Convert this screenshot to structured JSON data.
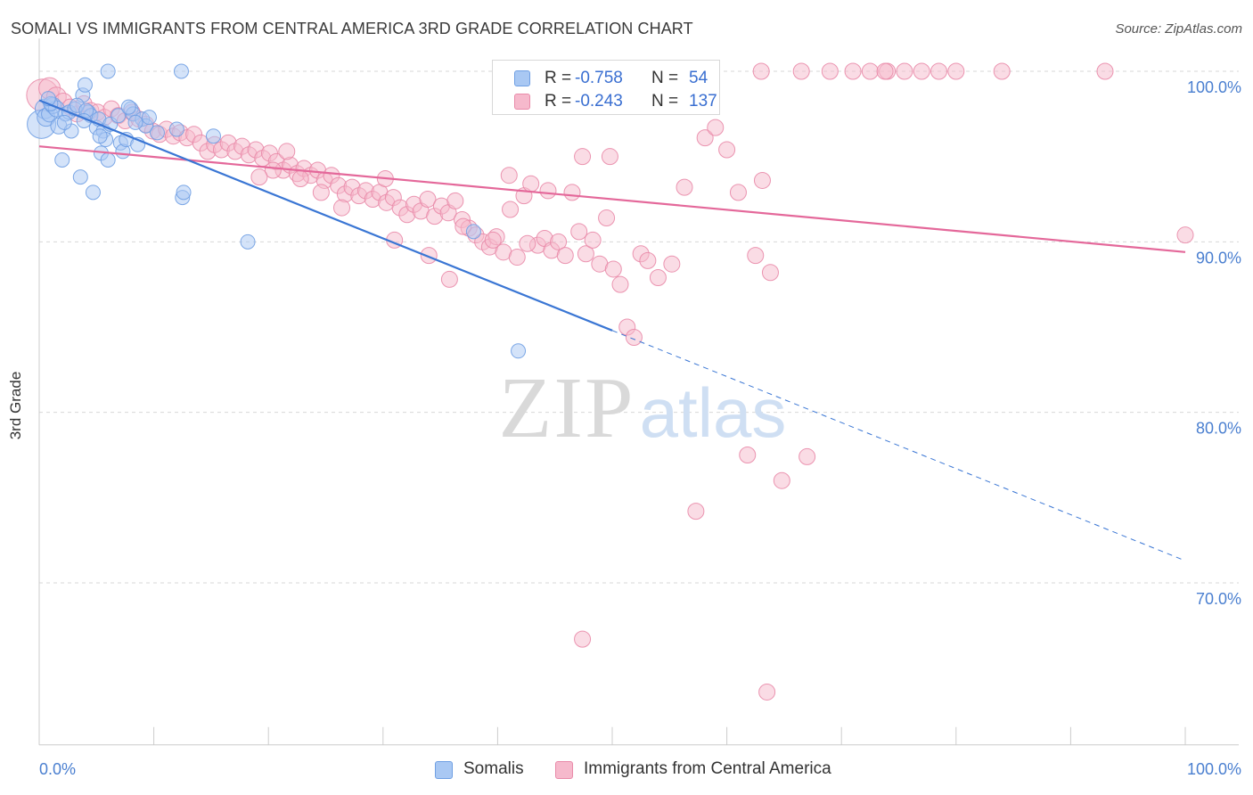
{
  "header": {
    "title": "SOMALI VS IMMIGRANTS FROM CENTRAL AMERICA 3RD GRADE CORRELATION CHART",
    "source": "Source: ZipAtlas.com"
  },
  "watermark": {
    "zip": "ZIP",
    "atlas": "atlas"
  },
  "stats": {
    "somalis": {
      "r_label": "R =",
      "r_value": "-0.758",
      "n_label": "N =",
      "n_value": "54"
    },
    "central_america": {
      "r_label": "R =",
      "r_value": "-0.243",
      "n_label": "N =",
      "n_value": "137"
    }
  },
  "legend": {
    "somalis": "Somalis",
    "central_america": "Immigrants from Central America"
  },
  "colors": {
    "somalis_fill": "#a9c8f3",
    "somalis_stroke": "#6f9fe3",
    "somalis_line": "#3a76d4",
    "central_fill": "#f6b9cc",
    "central_stroke": "#e98aa9",
    "central_line": "#e4689a",
    "grid": "#d7d7d7",
    "axis_label": "#4a7fd0"
  },
  "chart_data": {
    "type": "scatter",
    "title": "SOMALI VS IMMIGRANTS FROM CENTRAL AMERICA 3RD GRADE CORRELATION CHART",
    "xlabel": "",
    "ylabel": "3rd Grade",
    "xlim": [
      0,
      100
    ],
    "ylim": [
      60.5,
      101.5
    ],
    "x_tick_labels": [
      "0.0%",
      "100.0%"
    ],
    "y_ticks": [
      70,
      80,
      90,
      100
    ],
    "y_tick_labels": [
      "70.0%",
      "80.0%",
      "90.0%",
      "100.0%"
    ],
    "grid": "horizontal dashed",
    "legend_position": "bottom",
    "series": [
      {
        "name": "Somalis",
        "r": -0.758,
        "n": 54,
        "trendline": {
          "x": [
            0,
            50
          ],
          "y": [
            98.3,
            84.8
          ],
          "dashed_extension": {
            "x": [
              50,
              100
            ],
            "y": [
              84.8,
              71.3
            ]
          }
        },
        "points": [
          [
            0.2,
            96.9,
            16
          ],
          [
            0.5,
            97.8,
            11
          ],
          [
            0.6,
            97.3,
            10
          ],
          [
            0.9,
            97.5,
            9
          ],
          [
            1.2,
            98.0,
            9
          ],
          [
            1.5,
            97.8,
            9
          ],
          [
            1.7,
            96.8,
            9
          ],
          [
            2.0,
            94.8,
            8
          ],
          [
            2.3,
            97.5,
            8
          ],
          [
            2.6,
            97.6,
            8
          ],
          [
            2.8,
            96.5,
            8
          ],
          [
            3.1,
            97.8,
            8
          ],
          [
            3.6,
            93.8,
            8
          ],
          [
            3.8,
            98.6,
            8
          ],
          [
            4.0,
            99.2,
            8
          ],
          [
            4.3,
            97.6,
            8
          ],
          [
            4.5,
            97.4,
            8
          ],
          [
            4.7,
            92.9,
            8
          ],
          [
            5.0,
            96.7,
            8
          ],
          [
            5.2,
            97.2,
            8
          ],
          [
            5.4,
            95.2,
            8
          ],
          [
            5.6,
            96.5,
            8
          ],
          [
            5.8,
            96.0,
            8
          ],
          [
            6.0,
            94.8,
            8
          ],
          [
            6.2,
            96.9,
            8
          ],
          [
            6.0,
            100.0,
            8
          ],
          [
            7.1,
            95.8,
            8
          ],
          [
            7.3,
            95.3,
            8
          ],
          [
            7.6,
            96.0,
            8
          ],
          [
            8.0,
            97.8,
            8
          ],
          [
            8.2,
            97.5,
            8
          ],
          [
            8.6,
            95.7,
            8
          ],
          [
            9.0,
            97.2,
            8
          ],
          [
            9.3,
            96.8,
            8
          ],
          [
            10.3,
            96.4,
            8
          ],
          [
            12.4,
            100.0,
            8
          ],
          [
            12.0,
            96.6,
            8
          ],
          [
            12.5,
            92.6,
            8
          ],
          [
            12.6,
            92.9,
            8
          ],
          [
            15.2,
            96.2,
            8
          ],
          [
            18.2,
            90.0,
            8
          ],
          [
            37.9,
            90.6,
            8
          ],
          [
            41.8,
            83.6,
            8
          ],
          [
            1.0,
            98.1,
            8
          ],
          [
            2.2,
            97.0,
            8
          ],
          [
            3.3,
            98.0,
            8
          ],
          [
            4.1,
            97.7,
            8
          ],
          [
            6.9,
            97.4,
            8
          ],
          [
            7.8,
            97.9,
            8
          ],
          [
            8.4,
            97.0,
            8
          ],
          [
            9.6,
            97.3,
            8
          ],
          [
            5.3,
            96.2,
            8
          ],
          [
            0.8,
            98.4,
            8
          ],
          [
            3.9,
            97.1,
            8
          ]
        ]
      },
      {
        "name": "Immigrants from Central America",
        "r": -0.243,
        "n": 137,
        "trendline": {
          "x": [
            0,
            100
          ],
          "y": [
            95.6,
            89.4
          ]
        },
        "points": [
          [
            0.3,
            98.6,
            18
          ],
          [
            0.9,
            99.0,
            12
          ],
          [
            1.5,
            98.5,
            11
          ],
          [
            2.1,
            98.2,
            10
          ],
          [
            2.7,
            97.9,
            9
          ],
          [
            3.3,
            97.5,
            9
          ],
          [
            3.9,
            98.1,
            9
          ],
          [
            4.5,
            97.7,
            9
          ],
          [
            5.1,
            97.6,
            9
          ],
          [
            5.7,
            97.3,
            9
          ],
          [
            6.3,
            97.8,
            9
          ],
          [
            6.9,
            97.4,
            9
          ],
          [
            7.5,
            97.1,
            9
          ],
          [
            8.1,
            97.6,
            9
          ],
          [
            8.7,
            97.2,
            9
          ],
          [
            9.3,
            96.9,
            9
          ],
          [
            9.9,
            96.5,
            9
          ],
          [
            10.5,
            96.3,
            9
          ],
          [
            11.1,
            96.6,
            9
          ],
          [
            11.7,
            96.2,
            9
          ],
          [
            12.3,
            96.4,
            9
          ],
          [
            12.9,
            96.1,
            9
          ],
          [
            13.5,
            96.3,
            9
          ],
          [
            14.1,
            95.8,
            9
          ],
          [
            14.7,
            95.3,
            9
          ],
          [
            15.3,
            95.7,
            9
          ],
          [
            15.9,
            95.4,
            9
          ],
          [
            16.5,
            95.8,
            9
          ],
          [
            17.1,
            95.3,
            9
          ],
          [
            17.7,
            95.6,
            9
          ],
          [
            18.3,
            95.1,
            9
          ],
          [
            18.9,
            95.4,
            9
          ],
          [
            19.5,
            94.9,
            9
          ],
          [
            20.1,
            95.2,
            9
          ],
          [
            20.7,
            94.7,
            9
          ],
          [
            21.3,
            94.2,
            9
          ],
          [
            21.9,
            94.5,
            9
          ],
          [
            22.5,
            94.0,
            9
          ],
          [
            23.1,
            94.3,
            9
          ],
          [
            23.7,
            93.9,
            9
          ],
          [
            24.3,
            94.2,
            9
          ],
          [
            24.9,
            93.6,
            9
          ],
          [
            25.5,
            93.9,
            9
          ],
          [
            26.1,
            93.3,
            9
          ],
          [
            26.7,
            92.8,
            9
          ],
          [
            27.3,
            93.2,
            9
          ],
          [
            27.9,
            92.7,
            9
          ],
          [
            28.5,
            93.0,
            9
          ],
          [
            29.1,
            92.5,
            9
          ],
          [
            29.7,
            92.9,
            9
          ],
          [
            30.3,
            92.3,
            9
          ],
          [
            30.9,
            92.6,
            9
          ],
          [
            31.5,
            92.0,
            9
          ],
          [
            32.1,
            91.6,
            9
          ],
          [
            32.7,
            92.2,
            9
          ],
          [
            33.3,
            91.8,
            9
          ],
          [
            33.9,
            92.5,
            9
          ],
          [
            34.5,
            91.5,
            9
          ],
          [
            35.1,
            92.1,
            9
          ],
          [
            35.7,
            91.7,
            9
          ],
          [
            36.3,
            92.4,
            9
          ],
          [
            36.9,
            91.3,
            9
          ],
          [
            37.5,
            90.8,
            9
          ],
          [
            38.1,
            90.4,
            9
          ],
          [
            38.7,
            90.0,
            9
          ],
          [
            39.3,
            89.7,
            9
          ],
          [
            39.9,
            90.3,
            9
          ],
          [
            40.5,
            89.4,
            9
          ],
          [
            41.1,
            91.9,
            9
          ],
          [
            41.7,
            89.1,
            9
          ],
          [
            42.3,
            92.7,
            9
          ],
          [
            42.9,
            93.4,
            9
          ],
          [
            43.5,
            89.8,
            9
          ],
          [
            44.1,
            90.2,
            9
          ],
          [
            44.7,
            89.5,
            9
          ],
          [
            45.3,
            90.0,
            9
          ],
          [
            45.9,
            89.2,
            9
          ],
          [
            46.5,
            92.9,
            9
          ],
          [
            47.1,
            90.6,
            9
          ],
          [
            47.7,
            89.3,
            9
          ],
          [
            48.3,
            90.1,
            9
          ],
          [
            48.9,
            88.7,
            9
          ],
          [
            49.5,
            91.4,
            9
          ],
          [
            50.1,
            88.4,
            9
          ],
          [
            50.7,
            87.5,
            9
          ],
          [
            51.3,
            85.0,
            9
          ],
          [
            51.9,
            84.4,
            9
          ],
          [
            52.5,
            89.3,
            9
          ],
          [
            53.1,
            88.9,
            9
          ],
          [
            54.0,
            87.9,
            9
          ],
          [
            55.2,
            88.7,
            9
          ],
          [
            56.3,
            93.2,
            9
          ],
          [
            58.1,
            96.1,
            9
          ],
          [
            59.0,
            96.7,
            9
          ],
          [
            60.0,
            95.4,
            9
          ],
          [
            61.0,
            92.9,
            9
          ],
          [
            62.5,
            89.2,
            9
          ],
          [
            63.1,
            93.6,
            9
          ],
          [
            63.8,
            88.2,
            9
          ],
          [
            61.8,
            77.5,
            9
          ],
          [
            64.8,
            76.0,
            9
          ],
          [
            67.0,
            77.4,
            9
          ],
          [
            57.3,
            74.2,
            9
          ],
          [
            47.4,
            66.7,
            9
          ],
          [
            63.5,
            63.6,
            9
          ],
          [
            35.8,
            87.8,
            9
          ],
          [
            34.0,
            89.2,
            9
          ],
          [
            31.0,
            90.1,
            9
          ],
          [
            30.2,
            93.7,
            9
          ],
          [
            26.4,
            92.0,
            9
          ],
          [
            24.6,
            92.9,
            9
          ],
          [
            22.8,
            93.7,
            9
          ],
          [
            21.6,
            95.3,
            9
          ],
          [
            20.4,
            94.2,
            9
          ],
          [
            19.2,
            93.8,
            9
          ],
          [
            37.0,
            90.9,
            9
          ],
          [
            39.6,
            90.1,
            9
          ],
          [
            41.0,
            93.9,
            9
          ],
          [
            42.6,
            89.9,
            9
          ],
          [
            44.4,
            93.0,
            9
          ],
          [
            47.4,
            95.0,
            9
          ],
          [
            49.8,
            95.0,
            9
          ],
          [
            47.5,
            100.0,
            9
          ],
          [
            63.0,
            100.0,
            9
          ],
          [
            66.5,
            100.0,
            9
          ],
          [
            69.0,
            100.0,
            9
          ],
          [
            71.0,
            100.0,
            9
          ],
          [
            72.5,
            100.0,
            9
          ],
          [
            74.0,
            100.0,
            9
          ],
          [
            75.5,
            100.0,
            9
          ],
          [
            77.0,
            100.0,
            9
          ],
          [
            78.5,
            100.0,
            9
          ],
          [
            80.0,
            100.0,
            9
          ],
          [
            84.0,
            100.0,
            9
          ],
          [
            93.0,
            100.0,
            9
          ],
          [
            100.0,
            90.4,
            9
          ],
          [
            73.8,
            100.0,
            9
          ]
        ]
      }
    ]
  }
}
